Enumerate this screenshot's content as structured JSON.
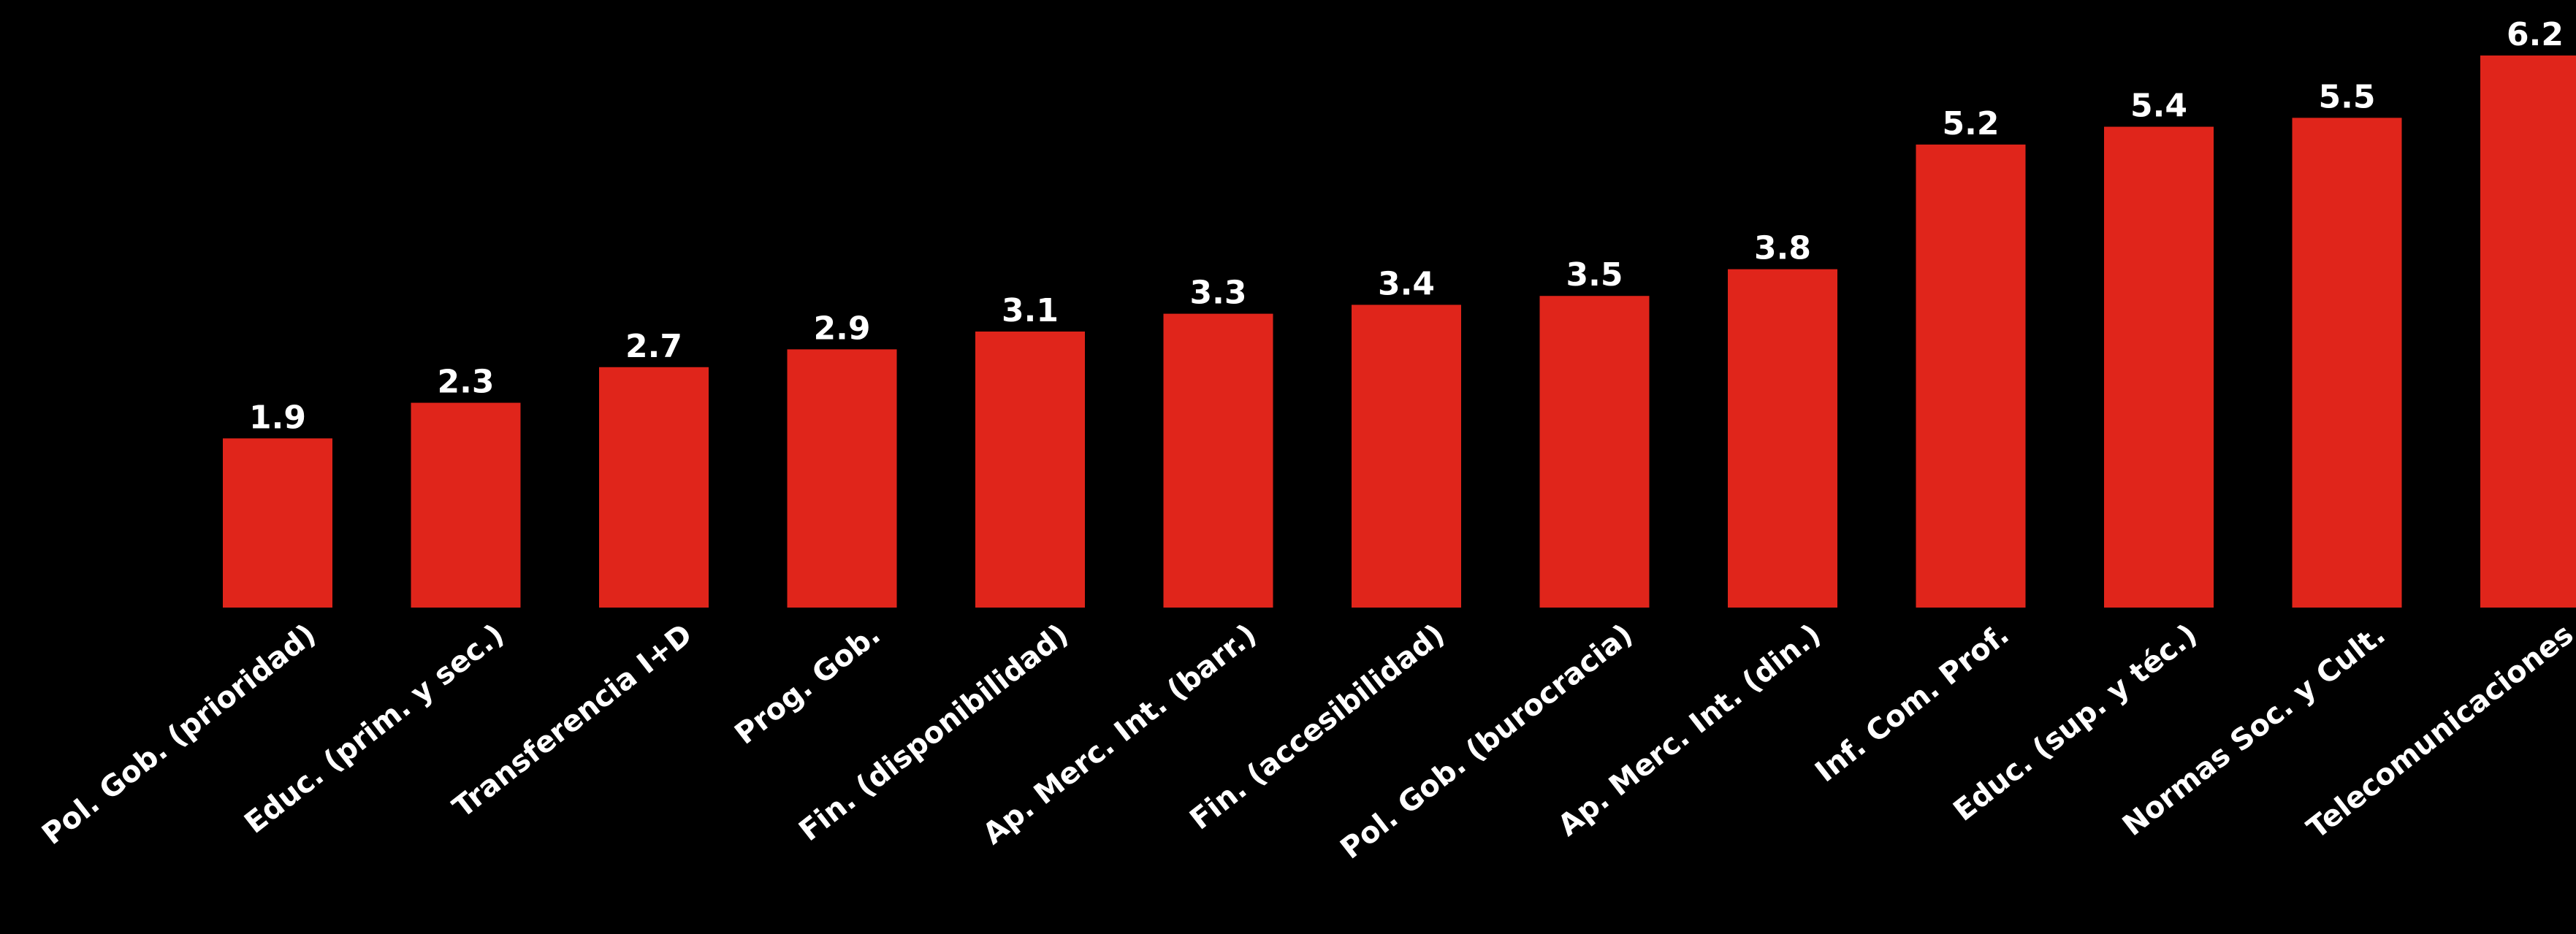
{
  "chart_data": {
    "type": "bar",
    "title": "",
    "xlabel": "",
    "ylabel": "",
    "ylim": [
      0,
      6.2
    ],
    "grid": false,
    "legend": "none",
    "bar_color": "#E0251B",
    "background_color": "#000000",
    "text_color": "#FFFFFF",
    "categories": [
      "Pol. Gob. (prioridad)",
      "Educ. (prim. y sec.)",
      "Transferencia I+D",
      "Prog. Gob.",
      "Fin. (disponibilidad)",
      "Ap. Merc. Int. (barr.)",
      "Fin. (accesibilidad)",
      "Pol. Gob. (burocracia)",
      "Ap. Merc. Int. (din.)",
      "Inf. Com. Prof.",
      "Educ. (sup. y téc.)",
      "Normas Soc. y Cult.",
      "Telecomunicaciones"
    ],
    "values": [
      1.9,
      2.3,
      2.7,
      2.9,
      3.1,
      3.3,
      3.4,
      3.5,
      3.8,
      5.2,
      5.4,
      5.5,
      6.2
    ],
    "value_labels": [
      "1.9",
      "2.3",
      "2.7",
      "2.9",
      "3.1",
      "3.3",
      "3.4",
      "3.5",
      "3.8",
      "5.2",
      "5.4",
      "5.5",
      "6.2"
    ]
  }
}
